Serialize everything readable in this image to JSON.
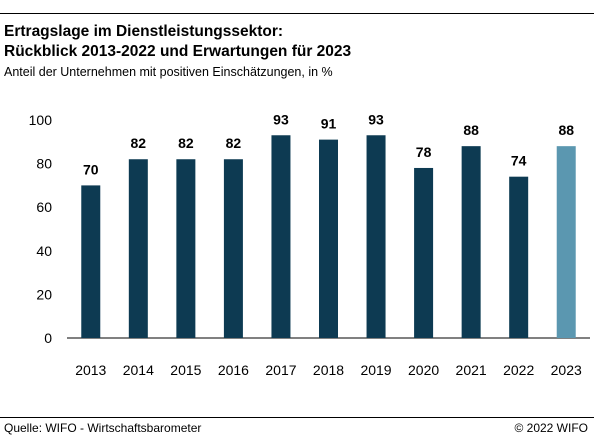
{
  "title_line1": "Ertragslage im Dienstleistungssektor:",
  "title_line2": "Rückblick 2013-2022 und Erwartungen für 2023",
  "subtitle": "Anteil der Unternehmen mit positiven Einschätzungen, in %",
  "source": "Quelle: WIFO - Wirtschaftsbarometer",
  "copyright": "© 2022 WIFO",
  "chart_data": {
    "type": "bar",
    "categories": [
      "2013",
      "2014",
      "2015",
      "2016",
      "2017",
      "2018",
      "2019",
      "2020",
      "2021",
      "2022",
      "2023"
    ],
    "values": [
      70,
      82,
      82,
      82,
      93,
      91,
      93,
      78,
      88,
      74,
      88
    ],
    "data_labels": [
      "70",
      "82",
      "82",
      "82",
      "93",
      "91",
      "93",
      "78",
      "88",
      "74",
      "88"
    ],
    "ylim": [
      0,
      100
    ],
    "yticks": [
      0,
      20,
      40,
      60,
      80,
      100
    ],
    "grid": false,
    "colors": {
      "actual": "#0d3a52",
      "forecast": "#5b97b0"
    },
    "highlight_index": 10
  }
}
